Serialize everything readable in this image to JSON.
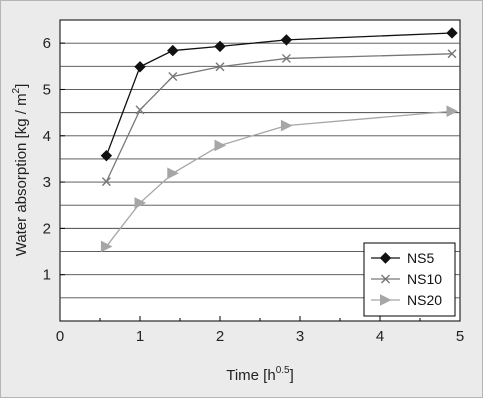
{
  "chart_data": {
    "type": "line",
    "xlabel": {
      "main": "Time [h",
      "sup": "0.5",
      "close": "]"
    },
    "ylabel": {
      "main": "Water absorption [kg / m",
      "sup": "2",
      "close": "]"
    },
    "xlim": [
      0,
      5
    ],
    "ylim": [
      0,
      6.5
    ],
    "xticks": [
      0,
      1,
      2,
      3,
      4,
      5
    ],
    "yticks": [
      1,
      2,
      3,
      4,
      5,
      6
    ],
    "grid": "horizontal",
    "legend_position": "bottom-right",
    "series": [
      {
        "name": "NS5",
        "color": "#111111",
        "marker": "diamond",
        "x": [
          0.58,
          1.0,
          1.41,
          2.0,
          2.83,
          4.9
        ],
        "y": [
          3.57,
          5.49,
          5.84,
          5.93,
          6.07,
          6.22
        ]
      },
      {
        "name": "NS10",
        "color": "#777777",
        "marker": "x",
        "x": [
          0.58,
          1.0,
          1.41,
          2.0,
          2.83,
          4.9
        ],
        "y": [
          3.01,
          4.56,
          5.28,
          5.49,
          5.67,
          5.77
        ]
      },
      {
        "name": "NS20",
        "color": "#a6a6a6",
        "marker": "triangle-right",
        "x": [
          0.58,
          1.0,
          1.41,
          2.0,
          2.83,
          4.9
        ],
        "y": [
          1.61,
          2.55,
          3.19,
          3.79,
          4.22,
          4.53
        ]
      }
    ]
  }
}
